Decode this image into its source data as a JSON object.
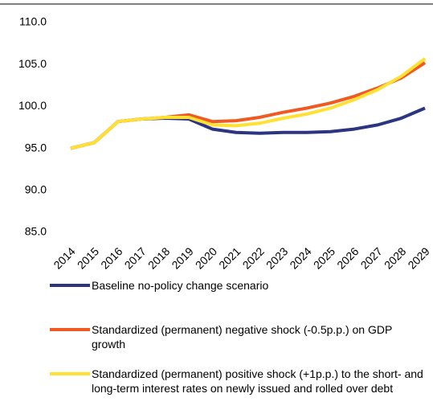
{
  "chart_data": {
    "type": "line",
    "categories": [
      "2014",
      "2015",
      "2016",
      "2017",
      "2018",
      "2019",
      "2020",
      "2021",
      "2022",
      "2023",
      "2024",
      "2025",
      "2026",
      "2027",
      "2028",
      "2029"
    ],
    "series": [
      {
        "name": "Baseline no-policy change scenario",
        "color": "#2b3580",
        "values": [
          95.0,
          95.7,
          98.2,
          98.5,
          98.6,
          98.5,
          97.3,
          96.9,
          96.8,
          96.9,
          96.9,
          97.0,
          97.3,
          97.8,
          98.6,
          99.8
        ]
      },
      {
        "name": "Standardized (permanent) negative shock (-0.5p.p.) on GDP growth",
        "color": "#f05a22",
        "values": [
          95.0,
          95.7,
          98.2,
          98.5,
          98.7,
          99.0,
          98.2,
          98.3,
          98.7,
          99.3,
          99.8,
          100.4,
          101.2,
          102.2,
          103.4,
          105.2
        ]
      },
      {
        "name": "Standardized (permanent) positive shock (+1p.p.) to the short- and long-term interest rates on newly issued and rolled over debt",
        "color": "#ffe033",
        "values": [
          95.0,
          95.7,
          98.2,
          98.5,
          98.7,
          98.7,
          97.8,
          97.7,
          98.0,
          98.6,
          99.1,
          99.8,
          100.8,
          102.0,
          103.6,
          105.7
        ]
      }
    ],
    "ylim": [
      85,
      110
    ],
    "yticks": [
      {
        "value": 85,
        "label": "85.0"
      },
      {
        "value": 90,
        "label": "90.0"
      },
      {
        "value": 95,
        "label": "95.0"
      },
      {
        "value": 100,
        "label": "100.0"
      },
      {
        "value": 105,
        "label": "105.0"
      },
      {
        "value": 110,
        "label": "110.0"
      }
    ]
  }
}
